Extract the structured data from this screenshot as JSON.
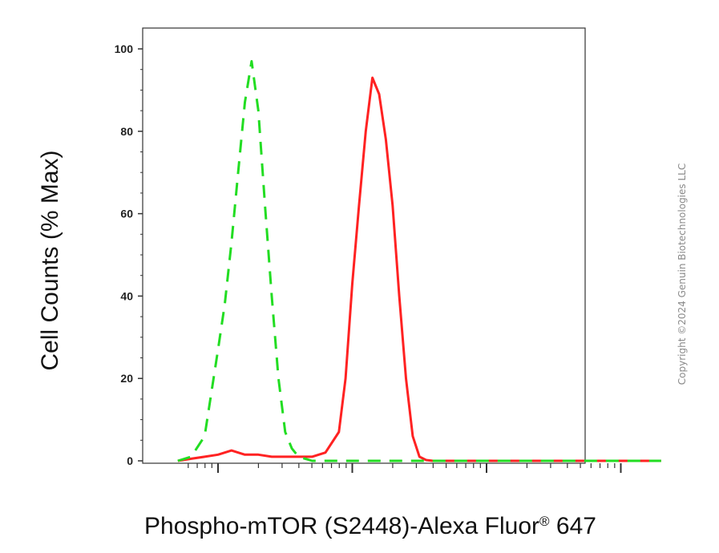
{
  "chart_data": {
    "type": "line",
    "title": "",
    "xlabel": "Phospho-mTOR (S2448)-Alexa Fluor",
    "xlabel_superscript": "®",
    "xlabel_suffix": " 647",
    "ylabel": "Cell Counts (% Max)",
    "ylim": [
      0,
      105
    ],
    "x_scale": "log",
    "xlim": [
      -0.3,
      3.3
    ],
    "yticks": [
      0,
      20,
      40,
      60,
      80,
      100
    ],
    "grid": false,
    "legend": "none",
    "series": [
      {
        "color": "#ff2222",
        "style": "solid",
        "x": [
          -0.3,
          -0.2,
          -0.1,
          0.0,
          0.1,
          0.2,
          0.3,
          0.4,
          0.5,
          0.6,
          0.7,
          0.8,
          0.9,
          0.95,
          1.0,
          1.05,
          1.1,
          1.15,
          1.2,
          1.25,
          1.3,
          1.35,
          1.4,
          1.45,
          1.5,
          1.55,
          1.6,
          1.7,
          1.8,
          1.9,
          2.0,
          2.5,
          3.0,
          3.3
        ],
        "y": [
          0,
          0.5,
          1,
          1.5,
          2.5,
          1.5,
          1.5,
          1,
          1,
          1,
          1,
          2,
          7,
          20,
          43,
          62,
          80,
          93,
          89,
          78,
          62,
          40,
          20,
          6,
          1,
          0.2,
          0,
          0,
          0,
          0,
          0,
          0,
          0,
          0
        ]
      },
      {
        "color": "#22dd22",
        "style": "dashed",
        "x": [
          -0.3,
          -0.2,
          -0.1,
          0.0,
          0.05,
          0.1,
          0.15,
          0.2,
          0.25,
          0.3,
          0.35,
          0.4,
          0.45,
          0.5,
          0.55,
          0.6,
          0.7,
          0.8,
          1.0,
          1.5,
          2.0,
          2.5,
          3.0,
          3.3
        ],
        "y": [
          0,
          1,
          6,
          27,
          38,
          53,
          70,
          87,
          97,
          85,
          62,
          40,
          20,
          7,
          3,
          1,
          0,
          0,
          0,
          0,
          0,
          0,
          0,
          0
        ]
      }
    ]
  },
  "copyright": "Copyright ©2024 Genuin Biotechnologies LLC"
}
